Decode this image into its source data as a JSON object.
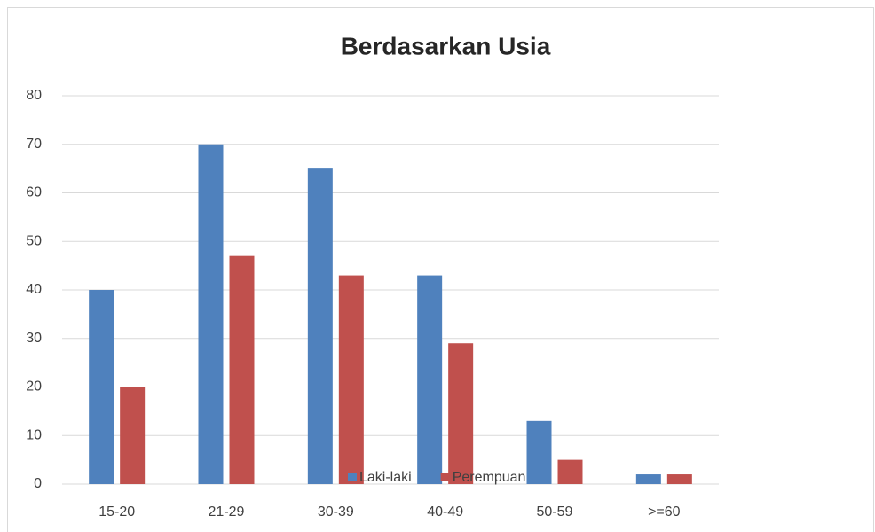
{
  "chart_data": {
    "type": "bar",
    "title": "Berdasarkan Usia",
    "categories": [
      "15-20",
      "21-29",
      "30-39",
      "40-49",
      "50-59",
      ">=60"
    ],
    "series": [
      {
        "name": "Laki-laki",
        "color": "#4f81bd",
        "values": [
          40,
          70,
          65,
          43,
          13,
          2
        ]
      },
      {
        "name": "Perempuan",
        "color": "#c0504d",
        "values": [
          20,
          47,
          43,
          29,
          5,
          2
        ]
      }
    ],
    "ylim": [
      0,
      80
    ],
    "yticks": [
      0,
      10,
      20,
      30,
      40,
      50,
      60,
      70,
      80
    ],
    "grid": true,
    "legend": "bottom"
  }
}
